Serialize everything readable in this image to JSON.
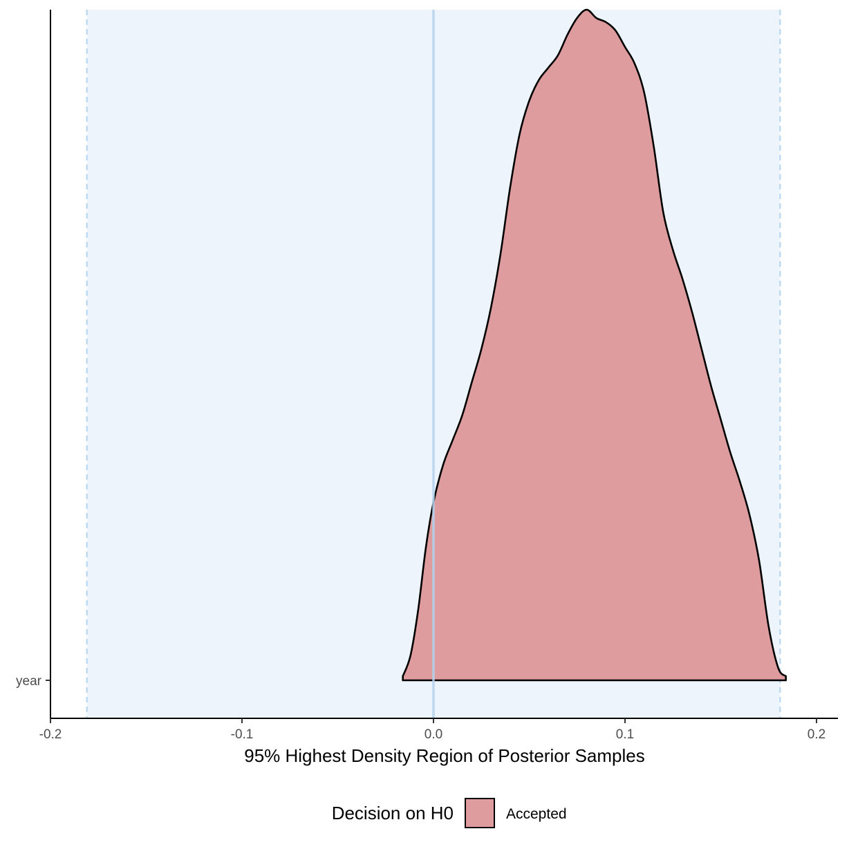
{
  "chart_data": {
    "type": "area",
    "xlabel": "95% Highest Density Region of Posterior Samples",
    "ylabel": "",
    "xlim": [
      -0.2,
      0.21
    ],
    "x_ticks": [
      "-0.2",
      "-0.1",
      "0.0",
      "0.1",
      "0.2"
    ],
    "x_tick_values": [
      -0.2,
      -0.1,
      0.0,
      0.1,
      0.2
    ],
    "categories": [
      "year"
    ],
    "rope": {
      "low": -0.181,
      "high": 0.181,
      "fill": "#eef4fc",
      "line_color": "#b3d4ee"
    },
    "null_value": 0.0,
    "legend": {
      "title": "Decision on H0",
      "position": "bottom"
    },
    "series": [
      {
        "name": "Accepted",
        "category": "year",
        "fill": "#df9c9f",
        "stroke": "#000000",
        "x": [
          -0.016,
          -0.012,
          -0.008,
          -0.004,
          0.0,
          0.005,
          0.01,
          0.015,
          0.02,
          0.025,
          0.03,
          0.035,
          0.04,
          0.045,
          0.05,
          0.055,
          0.06,
          0.065,
          0.07,
          0.075,
          0.08,
          0.085,
          0.09,
          0.095,
          0.1,
          0.105,
          0.11,
          0.115,
          0.12,
          0.125,
          0.13,
          0.135,
          0.14,
          0.145,
          0.15,
          0.155,
          0.16,
          0.165,
          0.17,
          0.175,
          0.18,
          0.184
        ],
        "density": [
          0.01,
          0.06,
          0.17,
          0.32,
          0.43,
          0.52,
          0.58,
          0.64,
          0.72,
          0.8,
          0.9,
          1.03,
          1.19,
          1.32,
          1.4,
          1.45,
          1.48,
          1.51,
          1.56,
          1.6,
          1.62,
          1.6,
          1.59,
          1.57,
          1.53,
          1.49,
          1.42,
          1.29,
          1.13,
          1.04,
          0.97,
          0.89,
          0.8,
          0.71,
          0.63,
          0.55,
          0.48,
          0.4,
          0.29,
          0.13,
          0.03,
          0.01
        ]
      }
    ]
  }
}
